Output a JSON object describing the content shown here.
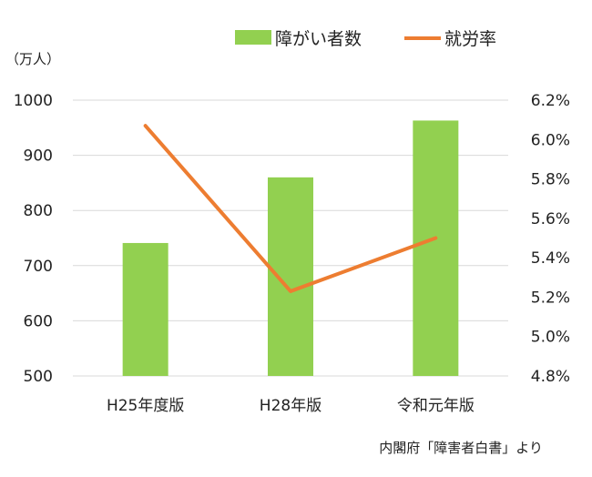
{
  "chart_data": {
    "type": "bar",
    "categories": [
      "H25年度版",
      "H28年版",
      "令和元年版"
    ],
    "series": [
      {
        "name": "障がい者数",
        "type": "bar",
        "axis": "left",
        "color": "#92d050",
        "values": [
          741,
          860,
          963
        ]
      },
      {
        "name": "就労率",
        "type": "line",
        "axis": "right",
        "color": "#ed7d31",
        "values": [
          6.07,
          5.23,
          5.5
        ]
      }
    ],
    "y_left": {
      "unit": "（万人）",
      "ylim": [
        500,
        1000
      ],
      "ticks": [
        "500",
        "600",
        "700",
        "800",
        "900",
        "1000"
      ]
    },
    "y_right": {
      "ylim": [
        4.8,
        6.2
      ],
      "ticks": [
        "4.8%",
        "5.0%",
        "5.2%",
        "5.4%",
        "5.6%",
        "5.8%",
        "6.0%",
        "6.2%"
      ]
    },
    "grid": true,
    "legend": "top-right",
    "source": "内閣府「障害者白書」より"
  }
}
